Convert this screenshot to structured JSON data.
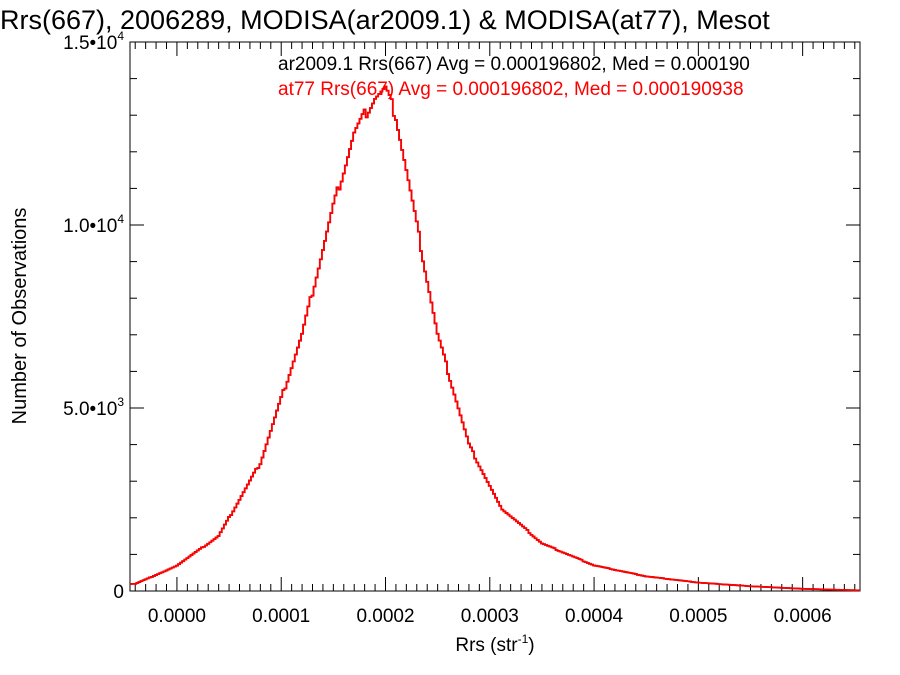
{
  "chart_data": {
    "type": "histogram",
    "title": "Rrs(667), 2006289, MODISA(ar2009.1) & MODISA(at77), Mesot",
    "xlabel": "Rrs (str",
    "xlabel_sup": "-1",
    "xlabel_close": ")",
    "ylabel": "Number of Observations",
    "xlim": [
      -4.5e-05,
      0.000655
    ],
    "ylim": [
      0,
      15000
    ],
    "x_ticks": [
      {
        "value": 0.0,
        "label": "0.0000"
      },
      {
        "value": 0.0001,
        "label": "0.0001"
      },
      {
        "value": 0.0002,
        "label": "0.0002"
      },
      {
        "value": 0.0003,
        "label": "0.0003"
      },
      {
        "value": 0.0004,
        "label": "0.0004"
      },
      {
        "value": 0.0005,
        "label": "0.0005"
      },
      {
        "value": 0.0006,
        "label": "0.0006"
      }
    ],
    "y_ticks": [
      {
        "value": 0,
        "label": "0",
        "exp": ""
      },
      {
        "value": 5000,
        "label": "5.0•10",
        "exp": "3"
      },
      {
        "value": 10000,
        "label": "1.0•10",
        "exp": "4"
      },
      {
        "value": 15000,
        "label": "1.5•10",
        "exp": "4"
      }
    ],
    "annotations": [
      {
        "text": "ar2009.1 Rrs(667) Avg = 0.000196802, Med = 0.000190",
        "color": "#000000"
      },
      {
        "text": "at77 Rrs(667) Avg = 0.000196802, Med = 0.000190938",
        "color": "#ff0000"
      }
    ],
    "series": [
      {
        "name": "ar2009.1",
        "color": "#000000",
        "x": [
          -4e-05,
          0.0,
          4e-05,
          8e-05,
          0.00012,
          0.00015,
          0.00017,
          0.00019,
          0.0002,
          0.00021,
          0.00023,
          0.00025,
          0.00028,
          0.00031,
          0.00035,
          0.0004,
          0.00045,
          0.0005,
          0.00055,
          0.0006,
          0.00065
        ],
        "y": [
          200,
          700,
          1500,
          3500,
          7000,
          10500,
          12500,
          13500,
          13700,
          13000,
          10000,
          7000,
          4000,
          2300,
          1300,
          700,
          400,
          230,
          130,
          60,
          20
        ]
      },
      {
        "name": "at77",
        "color": "#ff0000",
        "x": [
          -4e-05,
          0.0,
          4e-05,
          8e-05,
          0.00012,
          0.00015,
          0.00017,
          0.00019,
          0.0002,
          0.00021,
          0.00023,
          0.00025,
          0.00028,
          0.00031,
          0.00035,
          0.0004,
          0.00045,
          0.0005,
          0.00055,
          0.0006,
          0.00065
        ],
        "y": [
          200,
          700,
          1500,
          3500,
          7000,
          10500,
          12500,
          13500,
          13700,
          13000,
          10000,
          7000,
          4000,
          2300,
          1300,
          700,
          400,
          230,
          130,
          60,
          20
        ]
      }
    ]
  }
}
